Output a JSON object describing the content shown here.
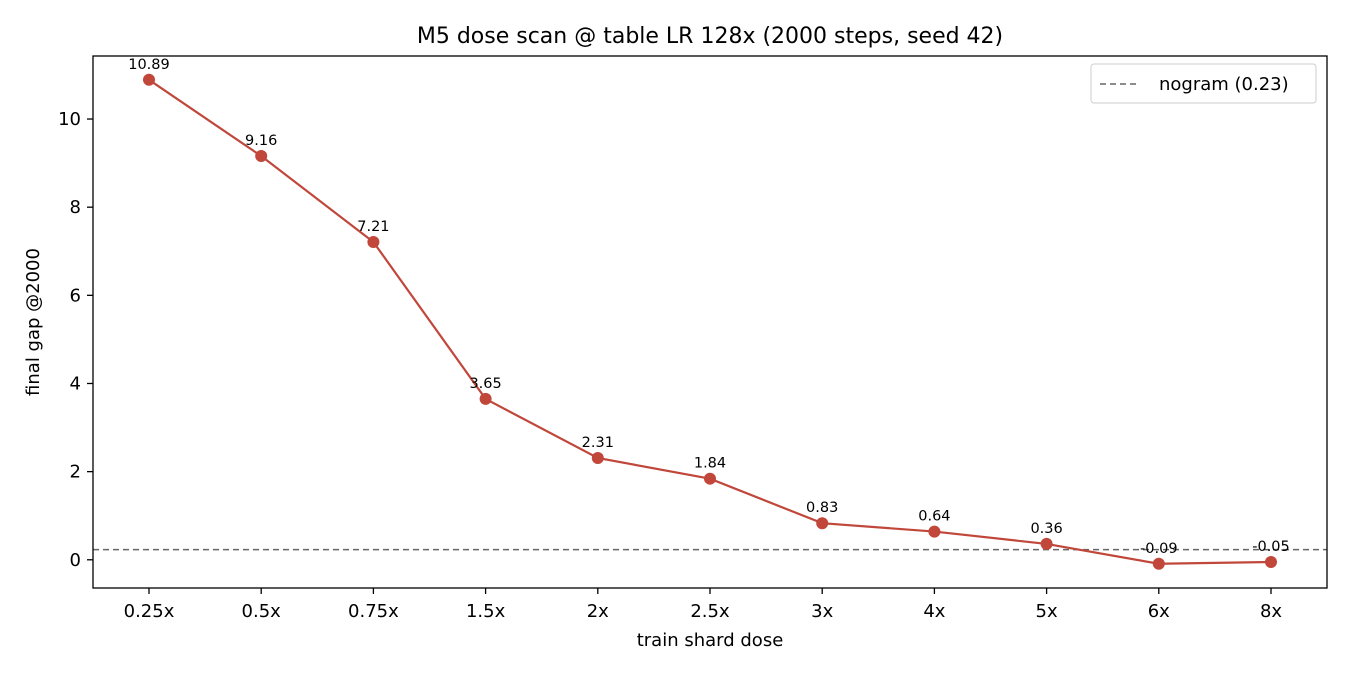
{
  "chart_data": {
    "type": "line",
    "title": "M5 dose scan @ table LR 128x (2000 steps, seed 42)",
    "xlabel": "train shard dose",
    "ylabel": "final gap @2000",
    "categories": [
      "0.25x",
      "0.5x",
      "0.75x",
      "1.5x",
      "2x",
      "2.5x",
      "3x",
      "4x",
      "5x",
      "6x",
      "8x"
    ],
    "series": [
      {
        "values": [
          10.89,
          9.16,
          7.21,
          3.65,
          2.31,
          1.84,
          0.83,
          0.64,
          0.36,
          -0.09,
          -0.05
        ],
        "labels": [
          "10.89",
          "9.16",
          "7.21",
          "3.65",
          "2.31",
          "1.84",
          "0.83",
          "0.64",
          "0.36",
          "-0.09",
          "-0.05"
        ],
        "color": "#c0473a"
      }
    ],
    "reference_line": {
      "name": "nogram (0.23)",
      "value": 0.23,
      "style": "dashed",
      "color": "#666666"
    },
    "y_ticks": [
      0,
      2,
      4,
      6,
      8,
      10
    ],
    "y_tick_labels": [
      "0",
      "2",
      "4",
      "6",
      "8",
      "10"
    ],
    "ylim": [
      -0.64,
      11.43
    ],
    "grid": false,
    "legend_position": "top-right"
  }
}
